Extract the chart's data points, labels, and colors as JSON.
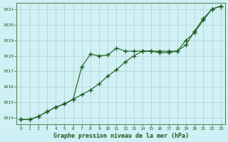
{
  "title": "Graphe pression niveau de la mer (hPa)",
  "background_color": "#cceeff",
  "plot_bg_color": "#d8f4f8",
  "grid_color": "#b0c8cc",
  "line_color": "#1a5c1a",
  "marker_color": "#1a5c1a",
  "xlim": [
    -0.5,
    23.5
  ],
  "ylim": [
    1013.6,
    1021.4
  ],
  "yticks": [
    1014,
    1015,
    1016,
    1017,
    1018,
    1019,
    1020,
    1021
  ],
  "xticks": [
    0,
    1,
    2,
    3,
    4,
    5,
    6,
    7,
    8,
    9,
    10,
    11,
    12,
    13,
    14,
    15,
    16,
    17,
    18,
    19,
    20,
    21,
    22,
    23
  ],
  "series1_x": [
    0,
    1,
    2,
    3,
    4,
    5,
    6,
    7,
    8,
    9,
    10,
    11,
    12,
    13,
    14,
    15,
    16,
    17,
    18,
    19,
    20,
    21,
    22,
    23
  ],
  "series1_y": [
    1013.9,
    1013.9,
    1014.1,
    1014.4,
    1014.7,
    1014.9,
    1015.2,
    1015.5,
    1015.8,
    1016.2,
    1016.7,
    1017.1,
    1017.6,
    1018.0,
    1018.3,
    1018.3,
    1018.3,
    1018.3,
    1018.3,
    1019.0,
    1019.5,
    1020.3,
    1021.0,
    1021.2
  ],
  "series2_x": [
    0,
    1,
    2,
    3,
    4,
    5,
    6,
    7,
    8,
    9,
    10,
    11,
    12,
    13,
    14,
    15,
    16,
    17,
    18,
    19,
    20,
    21,
    22,
    23
  ],
  "series2_y": [
    1013.9,
    1013.9,
    1014.1,
    1014.4,
    1014.7,
    1014.9,
    1015.2,
    1017.3,
    1018.1,
    1018.0,
    1018.05,
    1018.5,
    1018.3,
    1018.3,
    1018.3,
    1018.3,
    1018.2,
    1018.2,
    1018.3,
    1018.7,
    1019.6,
    1020.4,
    1021.0,
    1021.2
  ]
}
